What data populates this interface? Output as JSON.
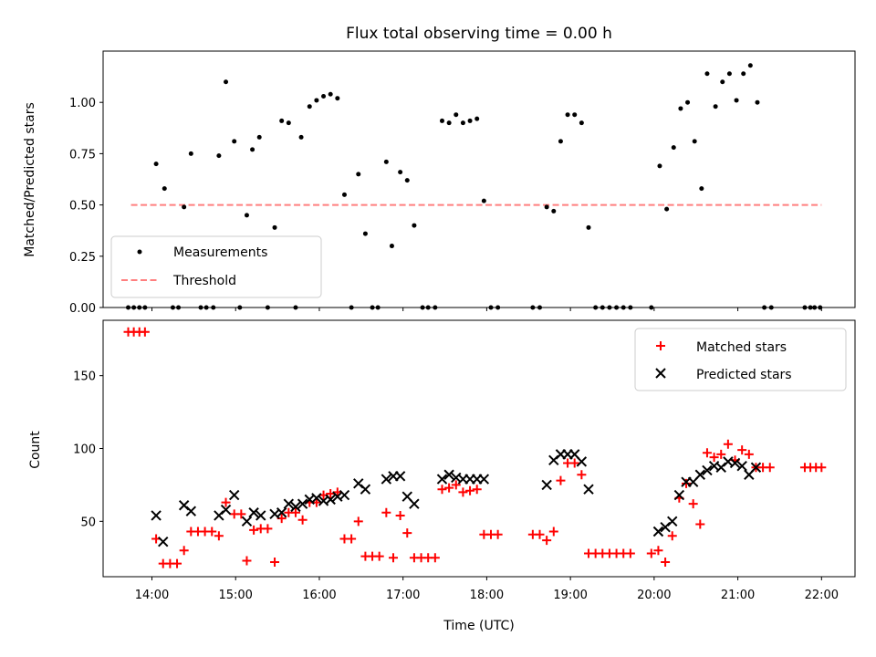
{
  "chart_data": [
    {
      "type": "scatter",
      "title": "Flux total observing time = 0.00 h",
      "xlabel": "",
      "ylabel": "Matched/Predicted stars",
      "xlim": [
        "13:25",
        "22:24"
      ],
      "ylim": [
        0.0,
        1.25
      ],
      "yticks": [
        "0.00",
        "0.25",
        "0.50",
        "0.75",
        "1.00"
      ],
      "legend": {
        "position": "bottom-left",
        "entries": [
          "Measurements",
          "Threshold"
        ]
      },
      "threshold": {
        "name": "Threshold",
        "y": 0.5,
        "x": [
          "13:45",
          "22:00"
        ],
        "color": "#ff7f7f",
        "style": "dashed"
      },
      "series": [
        {
          "name": "Measurements",
          "color": "#000000",
          "marker": "dot",
          "points": [
            [
              "13:43",
              0.0
            ],
            [
              "13:47",
              0.0
            ],
            [
              "13:51",
              0.0
            ],
            [
              "13:55",
              0.0
            ],
            [
              "14:03",
              0.7
            ],
            [
              "14:09",
              0.58
            ],
            [
              "14:15",
              0.0
            ],
            [
              "14:19",
              0.0
            ],
            [
              "14:23",
              0.49
            ],
            [
              "14:28",
              0.75
            ],
            [
              "14:35",
              0.0
            ],
            [
              "14:39",
              0.0
            ],
            [
              "14:44",
              0.0
            ],
            [
              "14:48",
              0.74
            ],
            [
              "14:53",
              1.1
            ],
            [
              "14:59",
              0.81
            ],
            [
              "15:03",
              0.0
            ],
            [
              "15:08",
              0.45
            ],
            [
              "15:12",
              0.77
            ],
            [
              "15:17",
              0.83
            ],
            [
              "15:23",
              0.0
            ],
            [
              "15:28",
              0.39
            ],
            [
              "15:33",
              0.91
            ],
            [
              "15:38",
              0.9
            ],
            [
              "15:43",
              0.0
            ],
            [
              "15:47",
              0.83
            ],
            [
              "15:53",
              0.98
            ],
            [
              "15:58",
              1.01
            ],
            [
              "16:03",
              1.03
            ],
            [
              "16:08",
              1.04
            ],
            [
              "16:13",
              1.02
            ],
            [
              "16:18",
              0.55
            ],
            [
              "16:23",
              0.0
            ],
            [
              "16:28",
              0.65
            ],
            [
              "16:33",
              0.36
            ],
            [
              "16:38",
              0.0
            ],
            [
              "16:42",
              0.0
            ],
            [
              "16:48",
              0.71
            ],
            [
              "16:52",
              0.3
            ],
            [
              "16:58",
              0.66
            ],
            [
              "17:03",
              0.62
            ],
            [
              "17:08",
              0.4
            ],
            [
              "17:14",
              0.0
            ],
            [
              "17:18",
              0.0
            ],
            [
              "17:23",
              0.0
            ],
            [
              "17:28",
              0.91
            ],
            [
              "17:33",
              0.9
            ],
            [
              "17:38",
              0.94
            ],
            [
              "17:43",
              0.9
            ],
            [
              "17:48",
              0.91
            ],
            [
              "17:53",
              0.92
            ],
            [
              "17:58",
              0.52
            ],
            [
              "18:03",
              0.0
            ],
            [
              "18:08",
              0.0
            ],
            [
              "18:33",
              0.0
            ],
            [
              "18:38",
              0.0
            ],
            [
              "18:43",
              0.49
            ],
            [
              "18:48",
              0.47
            ],
            [
              "18:53",
              0.81
            ],
            [
              "18:58",
              0.94
            ],
            [
              "19:03",
              0.94
            ],
            [
              "19:08",
              0.9
            ],
            [
              "19:13",
              0.39
            ],
            [
              "19:18",
              0.0
            ],
            [
              "19:23",
              0.0
            ],
            [
              "19:28",
              0.0
            ],
            [
              "19:33",
              0.0
            ],
            [
              "19:38",
              0.0
            ],
            [
              "19:43",
              0.0
            ],
            [
              "19:58",
              0.0
            ],
            [
              "20:04",
              0.69
            ],
            [
              "20:09",
              0.48
            ],
            [
              "20:14",
              0.78
            ],
            [
              "20:19",
              0.97
            ],
            [
              "20:24",
              1.0
            ],
            [
              "20:29",
              0.81
            ],
            [
              "20:34",
              0.58
            ],
            [
              "20:38",
              1.14
            ],
            [
              "20:44",
              0.98
            ],
            [
              "20:49",
              1.1
            ],
            [
              "20:54",
              1.14
            ],
            [
              "20:59",
              1.01
            ],
            [
              "21:04",
              1.14
            ],
            [
              "21:09",
              1.18
            ],
            [
              "21:14",
              1.0
            ],
            [
              "21:19",
              0.0
            ],
            [
              "21:24",
              0.0
            ],
            [
              "21:48",
              0.0
            ],
            [
              "21:52",
              0.0
            ],
            [
              "21:55",
              0.0
            ],
            [
              "21:59",
              0.0
            ]
          ]
        }
      ]
    },
    {
      "type": "scatter",
      "title": "",
      "xlabel": "Time (UTC)",
      "ylabel": "Count",
      "xlim": [
        "13:25",
        "22:24"
      ],
      "ylim": [
        12,
        188
      ],
      "yticks": [
        "50",
        "100",
        "150"
      ],
      "xticks": [
        "14:00",
        "15:00",
        "16:00",
        "17:00",
        "18:00",
        "19:00",
        "20:00",
        "21:00",
        "22:00"
      ],
      "legend": {
        "position": "top-right",
        "entries": [
          "Matched stars",
          "Predicted stars"
        ]
      },
      "series": [
        {
          "name": "Matched stars",
          "color": "#ff0000",
          "marker": "plus",
          "points": [
            [
              "13:43",
              180
            ],
            [
              "13:47",
              180
            ],
            [
              "13:51",
              180
            ],
            [
              "13:55",
              180
            ],
            [
              "14:03",
              38
            ],
            [
              "14:08",
              21
            ],
            [
              "14:13",
              21
            ],
            [
              "14:18",
              21
            ],
            [
              "14:23",
              30
            ],
            [
              "14:28",
              43
            ],
            [
              "14:33",
              43
            ],
            [
              "14:38",
              43
            ],
            [
              "14:43",
              43
            ],
            [
              "14:48",
              40
            ],
            [
              "14:53",
              63
            ],
            [
              "14:59",
              55
            ],
            [
              "15:04",
              55
            ],
            [
              "15:08",
              23
            ],
            [
              "15:13",
              44
            ],
            [
              "15:18",
              45
            ],
            [
              "15:23",
              45
            ],
            [
              "15:28",
              22
            ],
            [
              "15:33",
              52
            ],
            [
              "15:38",
              56
            ],
            [
              "15:43",
              56
            ],
            [
              "15:48",
              51
            ],
            [
              "15:53",
              63
            ],
            [
              "15:58",
              63
            ],
            [
              "16:03",
              68
            ],
            [
              "16:08",
              69
            ],
            [
              "16:13",
              70
            ],
            [
              "16:18",
              38
            ],
            [
              "16:23",
              38
            ],
            [
              "16:28",
              50
            ],
            [
              "16:33",
              26
            ],
            [
              "16:38",
              26
            ],
            [
              "16:43",
              26
            ],
            [
              "16:48",
              56
            ],
            [
              "16:53",
              25
            ],
            [
              "16:58",
              54
            ],
            [
              "17:03",
              42
            ],
            [
              "17:08",
              25
            ],
            [
              "17:13",
              25
            ],
            [
              "17:18",
              25
            ],
            [
              "17:23",
              25
            ],
            [
              "17:28",
              72
            ],
            [
              "17:33",
              73
            ],
            [
              "17:38",
              75
            ],
            [
              "17:43",
              70
            ],
            [
              "17:48",
              71
            ],
            [
              "17:53",
              72
            ],
            [
              "17:58",
              41
            ],
            [
              "18:03",
              41
            ],
            [
              "18:08",
              41
            ],
            [
              "18:33",
              41
            ],
            [
              "18:38",
              41
            ],
            [
              "18:43",
              37
            ],
            [
              "18:48",
              43
            ],
            [
              "18:53",
              78
            ],
            [
              "18:58",
              90
            ],
            [
              "19:03",
              90
            ],
            [
              "19:08",
              82
            ],
            [
              "19:13",
              28
            ],
            [
              "19:18",
              28
            ],
            [
              "19:23",
              28
            ],
            [
              "19:28",
              28
            ],
            [
              "19:33",
              28
            ],
            [
              "19:38",
              28
            ],
            [
              "19:43",
              28
            ],
            [
              "19:58",
              28
            ],
            [
              "20:03",
              30
            ],
            [
              "20:08",
              22
            ],
            [
              "20:13",
              40
            ],
            [
              "20:18",
              66
            ],
            [
              "20:23",
              76
            ],
            [
              "20:28",
              62
            ],
            [
              "20:33",
              48
            ],
            [
              "20:38",
              97
            ],
            [
              "20:43",
              94
            ],
            [
              "20:48",
              96
            ],
            [
              "20:53",
              103
            ],
            [
              "20:58",
              92
            ],
            [
              "21:03",
              99
            ],
            [
              "21:08",
              96
            ],
            [
              "21:13",
              87
            ],
            [
              "21:18",
              87
            ],
            [
              "21:23",
              87
            ],
            [
              "21:48",
              87
            ],
            [
              "21:52",
              87
            ],
            [
              "21:56",
              87
            ],
            [
              "22:00",
              87
            ]
          ]
        },
        {
          "name": "Predicted stars",
          "color": "#000000",
          "marker": "x",
          "points": [
            [
              "14:03",
              54
            ],
            [
              "14:08",
              36
            ],
            [
              "14:23",
              61
            ],
            [
              "14:28",
              57
            ],
            [
              "14:48",
              54
            ],
            [
              "14:53",
              58
            ],
            [
              "14:59",
              68
            ],
            [
              "15:08",
              50
            ],
            [
              "15:13",
              56
            ],
            [
              "15:18",
              54
            ],
            [
              "15:28",
              55
            ],
            [
              "15:33",
              56
            ],
            [
              "15:38",
              62
            ],
            [
              "15:43",
              60
            ],
            [
              "15:48",
              62
            ],
            [
              "15:53",
              65
            ],
            [
              "15:58",
              66
            ],
            [
              "16:03",
              64
            ],
            [
              "16:08",
              65
            ],
            [
              "16:13",
              67
            ],
            [
              "16:18",
              68
            ],
            [
              "16:28",
              76
            ],
            [
              "16:33",
              72
            ],
            [
              "16:48",
              79
            ],
            [
              "16:53",
              81
            ],
            [
              "16:58",
              81
            ],
            [
              "17:03",
              67
            ],
            [
              "17:08",
              62
            ],
            [
              "17:28",
              79
            ],
            [
              "17:33",
              82
            ],
            [
              "17:38",
              80
            ],
            [
              "17:43",
              79
            ],
            [
              "17:48",
              79
            ],
            [
              "17:53",
              79
            ],
            [
              "17:58",
              79
            ],
            [
              "18:43",
              75
            ],
            [
              "18:48",
              92
            ],
            [
              "18:53",
              96
            ],
            [
              "18:58",
              96
            ],
            [
              "19:03",
              96
            ],
            [
              "19:08",
              91
            ],
            [
              "19:13",
              72
            ],
            [
              "20:03",
              43
            ],
            [
              "20:08",
              46
            ],
            [
              "20:13",
              50
            ],
            [
              "20:18",
              68
            ],
            [
              "20:23",
              77
            ],
            [
              "20:28",
              77
            ],
            [
              "20:33",
              82
            ],
            [
              "20:38",
              85
            ],
            [
              "20:43",
              88
            ],
            [
              "20:48",
              87
            ],
            [
              "20:53",
              91
            ],
            [
              "20:58",
              90
            ],
            [
              "21:03",
              88
            ],
            [
              "21:08",
              82
            ],
            [
              "21:13",
              87
            ]
          ]
        }
      ]
    }
  ]
}
